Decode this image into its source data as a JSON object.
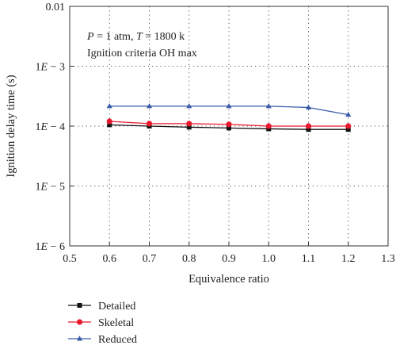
{
  "chart_data": {
    "type": "line",
    "title": "",
    "xlabel": "Equivalence ratio",
    "ylabel": "Ignition delay time (s)",
    "xlim": [
      0.5,
      1.3
    ],
    "ylim": [
      1e-06,
      0.01
    ],
    "yscale": "log",
    "x_ticks": [
      0.5,
      0.6,
      0.7,
      0.8,
      0.9,
      1.0,
      1.1,
      1.2,
      1.3
    ],
    "x_tick_labels": [
      "0.5",
      "0.6",
      "0.7",
      "0.8",
      "0.9",
      "1.0",
      "1.1",
      "1.2",
      "1.3"
    ],
    "y_ticks": [
      1e-06,
      1e-05,
      0.0001,
      0.001,
      0.01
    ],
    "y_tick_labels": [
      {
        "base": "1",
        "sym": "E",
        "exp": " − 6"
      },
      {
        "base": "1",
        "sym": "E",
        "exp": " − 5"
      },
      {
        "base": "1",
        "sym": "E",
        "exp": " − 4"
      },
      {
        "base": "1",
        "sym": "E",
        "exp": " − 3"
      },
      {
        "base": "0.01",
        "sym": "",
        "exp": ""
      }
    ],
    "grid": true,
    "legend_placement": "bottom-left, outside plot",
    "annotations": [
      {
        "parts": [
          {
            "t": "P",
            "i": true
          },
          {
            "t": " = 1 atm, ",
            "i": false
          },
          {
            "t": "T",
            "i": true
          },
          {
            "t": " = 1800 k",
            "i": false
          }
        ]
      },
      {
        "parts": [
          {
            "t": "Ignition criteria OH max",
            "i": false
          }
        ]
      }
    ],
    "x": [
      0.6,
      0.7,
      0.8,
      0.9,
      1.0,
      1.1,
      1.2
    ],
    "series": [
      {
        "name": "Detailed",
        "color": "#111111",
        "marker": "square",
        "values": [
          0.000105,
          0.0001,
          9.6e-05,
          9.3e-05,
          9e-05,
          8.8e-05,
          8.8e-05
        ]
      },
      {
        "name": "Skeletal",
        "color": "#e8192c",
        "marker": "circle",
        "values": [
          0.00012,
          0.00011,
          0.00011,
          0.000107,
          0.0001,
          0.0001,
          0.0001
        ]
      },
      {
        "name": "Reduced",
        "color": "#3a5ca8",
        "marker": "triangle",
        "values": [
          0.000215,
          0.000215,
          0.000215,
          0.000215,
          0.000215,
          0.000205,
          0.000155
        ]
      }
    ]
  }
}
